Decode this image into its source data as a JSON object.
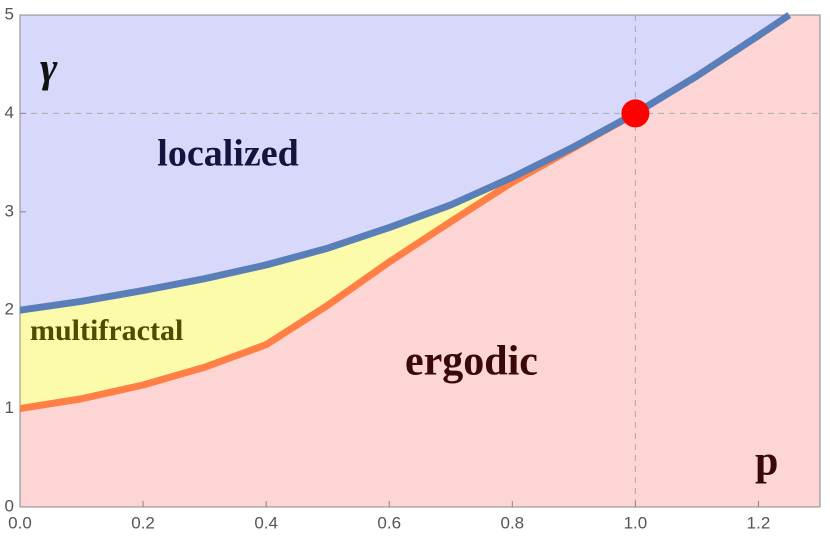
{
  "chart_data": {
    "type": "line",
    "y_label": "γ",
    "x_label": "p",
    "xlim": [
      0,
      1.3
    ],
    "ylim": [
      0,
      5
    ],
    "xticks": [
      {
        "value": 0,
        "label": "0.0"
      },
      0.2,
      0.4,
      0.6,
      0.8,
      {
        "value": 1,
        "label": "1.0"
      },
      1.2
    ],
    "yticks": [
      0,
      1,
      2,
      3,
      4,
      5
    ],
    "series": [
      {
        "color": "#5a7fb8",
        "x": [
          0,
          0.1,
          0.2,
          0.3,
          0.4,
          0.5,
          0.6,
          0.7,
          0.8,
          0.9,
          1.0,
          1.1,
          1.2,
          1.25
        ],
        "values": [
          2.0,
          2.09,
          2.2,
          2.32,
          2.46,
          2.63,
          2.84,
          3.07,
          3.35,
          3.66,
          4.0,
          4.38,
          4.79,
          5.0
        ]
      },
      {
        "color": "#ff7f45",
        "x": [
          0,
          0.1,
          0.2,
          0.3,
          0.4,
          0.5,
          0.6,
          0.7,
          0.8,
          0.9,
          1.0
        ],
        "values": [
          1.0,
          1.1,
          1.24,
          1.42,
          1.65,
          2.05,
          2.49,
          2.9,
          3.3,
          3.65,
          4.0
        ]
      }
    ],
    "point": {
      "x": 1,
      "y": 4,
      "color": "#ff0000"
    },
    "reference_lines": {
      "x": 1,
      "y": 4
    },
    "regions": [
      {
        "label": "localized",
        "color": "#d8d8fb",
        "text_color": "#14143f"
      },
      {
        "label": "multifractal",
        "color": "#fbfbaa",
        "text_color": "#4d4d00"
      },
      {
        "label": "ergodic",
        "color": "#fdd5d5",
        "text_color": "#3a0808"
      }
    ]
  }
}
